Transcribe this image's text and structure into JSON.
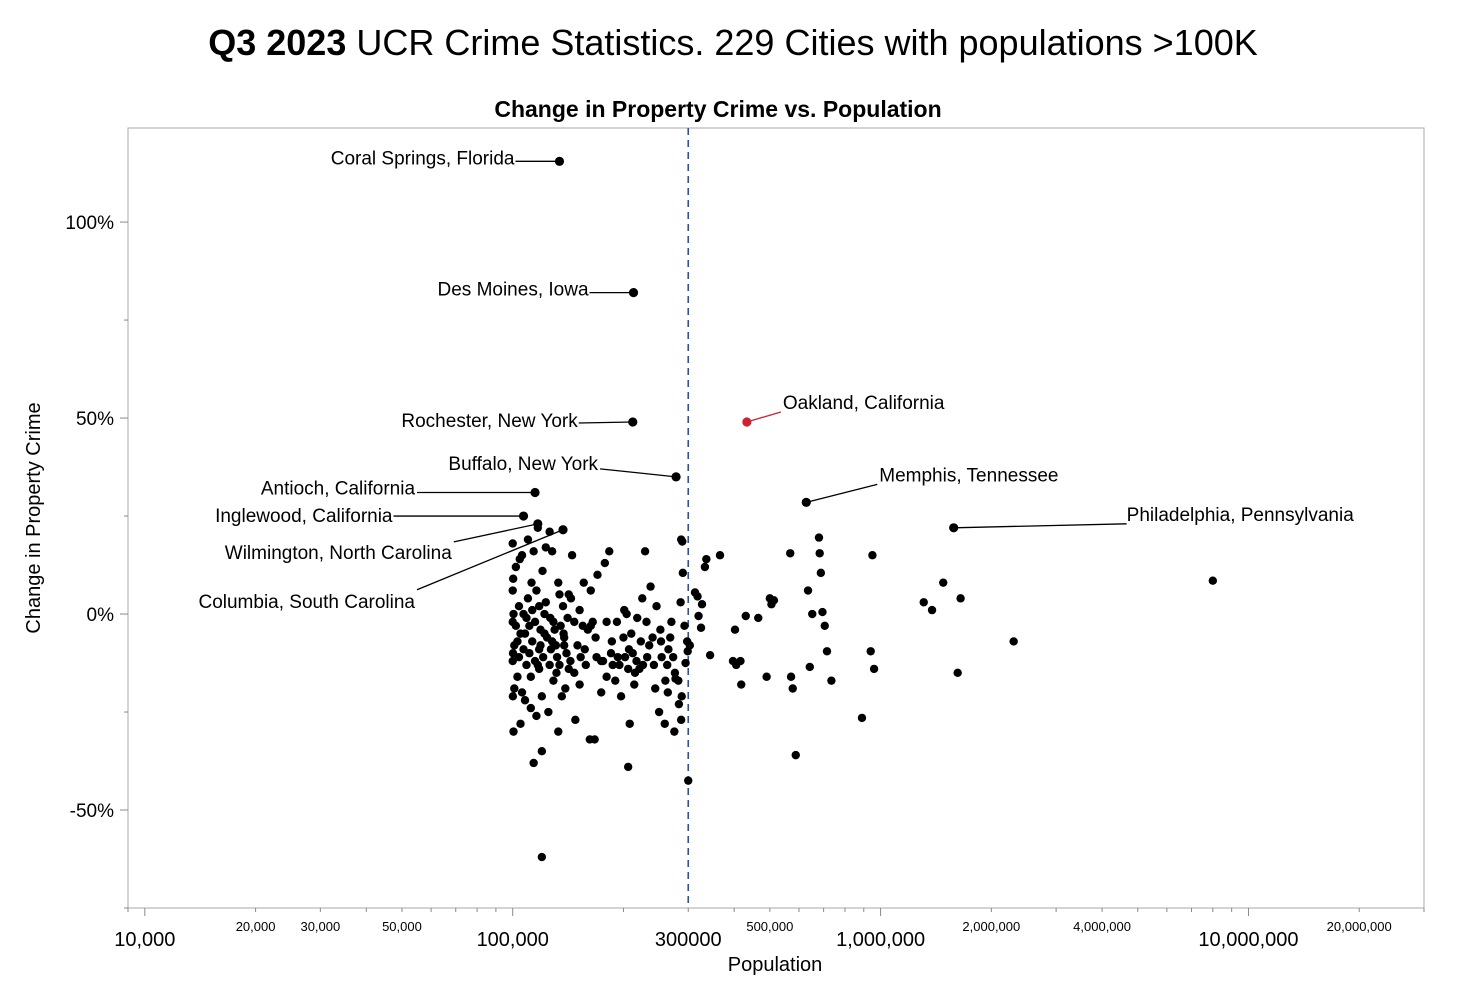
{
  "headline": {
    "bold": "Q3 2023",
    "rest": " UCR Crime Statistics. 229 Cities with populations >100K"
  },
  "colors": {
    "point": "#000000",
    "highlight": "#cc2233",
    "reference": "#2255aa",
    "axis": "#888888"
  },
  "chart_data": {
    "type": "scatter",
    "title": "Change in Property Crime vs. Population",
    "xlabel": "Population",
    "ylabel": "Change in Property Crime",
    "x_scale": "log",
    "xlim": [
      9000,
      30000000
    ],
    "ylim": [
      -75,
      124
    ],
    "grid": false,
    "x_ticks": [
      {
        "value": 10000,
        "label": "10,000",
        "major": true
      },
      {
        "value": 20000,
        "label": "20,000",
        "major": false
      },
      {
        "value": 30000,
        "label": "30,000",
        "major": false
      },
      {
        "value": 50000,
        "label": "50,000",
        "major": false
      },
      {
        "value": 100000,
        "label": "100,000",
        "major": true
      },
      {
        "value": 300000,
        "label": "300000",
        "major": true,
        "reference": true
      },
      {
        "value": 500000,
        "label": "500,000",
        "major": false
      },
      {
        "value": 1000000,
        "label": "1,000,000",
        "major": true
      },
      {
        "value": 2000000,
        "label": "2,000,000",
        "major": false
      },
      {
        "value": 4000000,
        "label": "4,000,000",
        "major": false
      },
      {
        "value": 10000000,
        "label": "10,000,000",
        "major": true
      },
      {
        "value": 20000000,
        "label": "20,000,000",
        "major": false
      }
    ],
    "y_ticks": [
      {
        "value": 100,
        "label": "100%"
      },
      {
        "value": 50,
        "label": "50%"
      },
      {
        "value": 0,
        "label": "0%"
      },
      {
        "value": -50,
        "label": "-50%"
      }
    ],
    "reference_line": {
      "x": 300000
    },
    "labeled_points": [
      {
        "name": "Coral Springs, Florida",
        "x": 134000,
        "y": 115.5
      },
      {
        "name": "Des Moines, Iowa",
        "x": 213000,
        "y": 82
      },
      {
        "name": "Rochester, New York",
        "x": 212000,
        "y": 49
      },
      {
        "name": "Oakland, California",
        "x": 433000,
        "y": 49,
        "highlight": true
      },
      {
        "name": "Buffalo, New York",
        "x": 278000,
        "y": 35
      },
      {
        "name": "Memphis, Tennessee",
        "x": 628000,
        "y": 28.5
      },
      {
        "name": "Antioch, California",
        "x": 115000,
        "y": 31
      },
      {
        "name": "Inglewood, California",
        "x": 107000,
        "y": 25
      },
      {
        "name": "Philadelphia, Pennsylvania",
        "x": 1580000,
        "y": 22
      },
      {
        "name": "Wilmington, North Carolina",
        "x": 117000,
        "y": 23
      },
      {
        "name": "Columbia, South Carolina",
        "x": 137000,
        "y": 21.5
      }
    ],
    "points": [
      [
        300000,
        -42.5
      ],
      [
        120000,
        -62
      ],
      [
        8000000,
        8.5
      ],
      [
        2300000,
        -7
      ],
      [
        1650000,
        4
      ],
      [
        1620000,
        -15
      ],
      [
        1480000,
        8
      ],
      [
        1380000,
        1
      ],
      [
        1310000,
        3
      ],
      [
        950000,
        15
      ],
      [
        960000,
        -14
      ],
      [
        940000,
        -9.5
      ],
      [
        890000,
        -26.5
      ],
      [
        735000,
        -17
      ],
      [
        715000,
        -9.5
      ],
      [
        705000,
        -3
      ],
      [
        695000,
        0.5
      ],
      [
        688000,
        10.5
      ],
      [
        683000,
        15.5
      ],
      [
        680000,
        19.5
      ],
      [
        652000,
        0
      ],
      [
        642000,
        -13.5
      ],
      [
        635000,
        6
      ],
      [
        588000,
        -36
      ],
      [
        577000,
        -19
      ],
      [
        571000,
        -16
      ],
      [
        568000,
        15.5
      ],
      [
        513000,
        3.5
      ],
      [
        505000,
        2.5
      ],
      [
        500000,
        4
      ],
      [
        490000,
        -16
      ],
      [
        465000,
        -1
      ],
      [
        430000,
        -0.5
      ],
      [
        418000,
        -18
      ],
      [
        416000,
        -12
      ],
      [
        405000,
        -13
      ],
      [
        402000,
        -4
      ],
      [
        397000,
        -12
      ],
      [
        366000,
        15
      ],
      [
        344000,
        -10.5
      ],
      [
        336000,
        14
      ],
      [
        333000,
        12
      ],
      [
        327000,
        2.5
      ],
      [
        325000,
        -3.5
      ],
      [
        320000,
        -0.5
      ],
      [
        318000,
        4.5
      ],
      [
        313000,
        5.5
      ],
      [
        303000,
        -8
      ],
      [
        299000,
        -9.5
      ],
      [
        295000,
        -12.5
      ],
      [
        293000,
        -3
      ],
      [
        290000,
        10.5
      ],
      [
        289000,
        18.5
      ],
      [
        287000,
        19
      ],
      [
        287000,
        -27
      ],
      [
        286000,
        3
      ],
      [
        283000,
        -23
      ],
      [
        282000,
        -17
      ],
      [
        277000,
        -16.5
      ],
      [
        275000,
        -30
      ],
      [
        273000,
        -11
      ],
      [
        270000,
        -2
      ],
      [
        268000,
        -6
      ],
      [
        265000,
        -9
      ],
      [
        263000,
        -13
      ],
      [
        260000,
        -17
      ],
      [
        259000,
        -28
      ],
      [
        254000,
        -11
      ],
      [
        252000,
        -4
      ],
      [
        250000,
        -25
      ],
      [
        246000,
        2
      ],
      [
        244000,
        -19
      ],
      [
        240000,
        -6
      ],
      [
        237000,
        7
      ],
      [
        235000,
        -8
      ],
      [
        231000,
        -2
      ],
      [
        229000,
        16
      ],
      [
        226000,
        -13
      ],
      [
        225000,
        4
      ],
      [
        221000,
        -14
      ],
      [
        218000,
        -1
      ],
      [
        217000,
        -12
      ],
      [
        214000,
        -18
      ],
      [
        212000,
        -10
      ],
      [
        210000,
        -5
      ],
      [
        208000,
        -28
      ],
      [
        206000,
        -39
      ],
      [
        206000,
        -14
      ],
      [
        204000,
        0
      ],
      [
        202000,
        -11
      ],
      [
        201000,
        1
      ],
      [
        197000,
        -21
      ],
      [
        195000,
        -13
      ],
      [
        192000,
        -2
      ],
      [
        190000,
        -17
      ],
      [
        187000,
        -13
      ],
      [
        185000,
        -10
      ],
      [
        183000,
        16
      ],
      [
        180000,
        -2
      ],
      [
        178000,
        13
      ],
      [
        176000,
        -12
      ],
      [
        174000,
        -20
      ],
      [
        170000,
        10
      ],
      [
        169000,
        -11
      ],
      [
        167000,
        -32
      ],
      [
        165000,
        -2
      ],
      [
        163000,
        -3
      ],
      [
        162000,
        -32
      ],
      [
        160000,
        -4
      ],
      [
        158000,
        -13
      ],
      [
        156000,
        8
      ],
      [
        155000,
        -3
      ],
      [
        153000,
        -11
      ],
      [
        152000,
        -18
      ],
      [
        150000,
        -8
      ],
      [
        148000,
        -27
      ],
      [
        147000,
        -2
      ],
      [
        145000,
        15
      ],
      [
        144000,
        4
      ],
      [
        142000,
        -14
      ],
      [
        141000,
        -1
      ],
      [
        140000,
        -10
      ],
      [
        139000,
        -19
      ],
      [
        138000,
        -6
      ],
      [
        137000,
        2
      ],
      [
        136000,
        -21
      ],
      [
        135000,
        -3
      ],
      [
        134000,
        -13
      ],
      [
        134000,
        5
      ],
      [
        133000,
        -30
      ],
      [
        132000,
        -11
      ],
      [
        131000,
        -8
      ],
      [
        130000,
        -4
      ],
      [
        129000,
        -2
      ],
      [
        129000,
        -17
      ],
      [
        128000,
        16
      ],
      [
        127000,
        -9
      ],
      [
        126000,
        -13
      ],
      [
        126000,
        21
      ],
      [
        125000,
        -25
      ],
      [
        124000,
        -6
      ],
      [
        123000,
        3
      ],
      [
        123000,
        17
      ],
      [
        122000,
        0
      ],
      [
        121000,
        -11
      ],
      [
        120000,
        -21
      ],
      [
        120000,
        -35
      ],
      [
        119000,
        -4
      ],
      [
        119000,
        -8
      ],
      [
        118000,
        2
      ],
      [
        118000,
        -9
      ],
      [
        117000,
        -13
      ],
      [
        117000,
        22
      ],
      [
        116000,
        6
      ],
      [
        116000,
        -26
      ],
      [
        115000,
        -2
      ],
      [
        115000,
        -12
      ],
      [
        114000,
        -38
      ],
      [
        114000,
        16
      ],
      [
        113000,
        -7
      ],
      [
        113000,
        1
      ],
      [
        112000,
        -16
      ],
      [
        112000,
        -24
      ],
      [
        111000,
        -3
      ],
      [
        111000,
        -10
      ],
      [
        110000,
        19
      ],
      [
        110000,
        4
      ],
      [
        109000,
        -1
      ],
      [
        109000,
        -13
      ],
      [
        108000,
        -5
      ],
      [
        108000,
        -22
      ],
      [
        107000,
        0
      ],
      [
        107000,
        -9
      ],
      [
        106000,
        -20
      ],
      [
        106000,
        15
      ],
      [
        105000,
        -5
      ],
      [
        105000,
        -28
      ],
      [
        104000,
        -11
      ],
      [
        104000,
        2
      ],
      [
        103000,
        -7
      ],
      [
        103000,
        -16
      ],
      [
        102000,
        -3
      ],
      [
        102000,
        12
      ],
      [
        101000,
        -19
      ],
      [
        101000,
        -8
      ],
      [
        100500,
        0
      ],
      [
        100500,
        -30
      ],
      [
        100200,
        -10
      ],
      [
        100100,
        -21
      ],
      [
        100000,
        6
      ],
      [
        100000,
        -2
      ],
      [
        100000,
        18
      ],
      [
        100000,
        -12
      ],
      [
        100300,
        9
      ],
      [
        118000,
        -14
      ],
      [
        122000,
        -5
      ],
      [
        128000,
        -7
      ],
      [
        133000,
        8
      ],
      [
        138000,
        -8
      ],
      [
        142000,
        5
      ],
      [
        147000,
        -15
      ],
      [
        152000,
        1
      ],
      [
        157000,
        -9
      ],
      [
        163000,
        6
      ],
      [
        168000,
        -6
      ],
      [
        174000,
        -12
      ],
      [
        180000,
        -16
      ],
      [
        186000,
        -7
      ],
      [
        193000,
        -11
      ],
      [
        200000,
        -6
      ],
      [
        207000,
        -9
      ],
      [
        215000,
        -15
      ],
      [
        223000,
        -7
      ],
      [
        232000,
        -11
      ],
      [
        242000,
        -13
      ],
      [
        253000,
        -7
      ],
      [
        264000,
        -20
      ],
      [
        276000,
        -15
      ],
      [
        288000,
        -21
      ],
      [
        298000,
        -7
      ],
      [
        104500,
        14
      ],
      [
        112500,
        8
      ],
      [
        120500,
        11
      ],
      [
        126500,
        -1
      ],
      [
        131500,
        -15
      ],
      [
        137500,
        -5
      ],
      [
        143500,
        -12
      ]
    ]
  }
}
